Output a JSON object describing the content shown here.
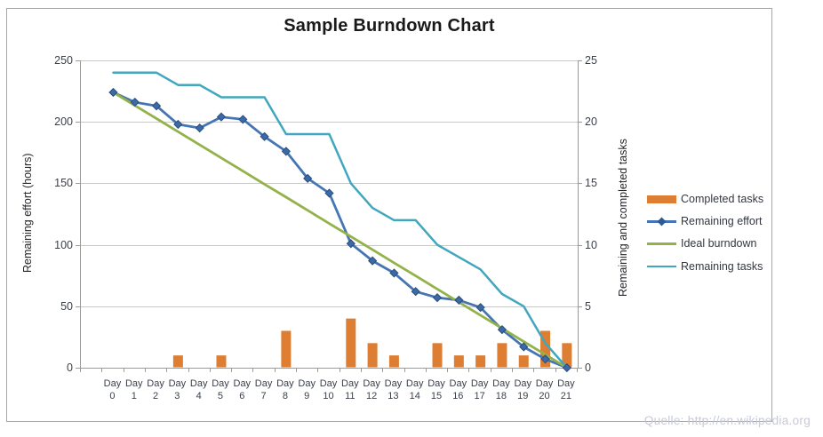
{
  "title": "Sample Burndown Chart",
  "watermark": "Quelle: http://en.wikipedia.org",
  "axes": {
    "left": {
      "title": "Remaining effort (hours)",
      "ticks": [
        "250",
        "200",
        "150",
        "100",
        "50",
        "0"
      ]
    },
    "right": {
      "title": "Remaining and completed tasks",
      "ticks": [
        "25",
        "20",
        "15",
        "10",
        "5",
        "0"
      ]
    },
    "x": {
      "prefix": "Day",
      "days": [
        "0",
        "1",
        "2",
        "3",
        "4",
        "5",
        "6",
        "7",
        "8",
        "9",
        "10",
        "11",
        "12",
        "13",
        "14",
        "15",
        "16",
        "17",
        "18",
        "19",
        "20",
        "21"
      ]
    }
  },
  "legend": [
    {
      "label": "Completed tasks",
      "swatch": "bar",
      "color": "#dd7e32"
    },
    {
      "label": "Remaining effort",
      "swatch": "line-marker",
      "color": "#4575b4",
      "marker_color": "#2f5b94"
    },
    {
      "label": "Ideal burndown",
      "swatch": "line",
      "color": "#94b24a"
    },
    {
      "label": "Remaining tasks",
      "swatch": "line",
      "color": "#41a6be"
    }
  ],
  "colors": {
    "bar": "#dd7e32",
    "remaining_effort": "#4575b4",
    "marker": "#2f5b94",
    "ideal": "#94b24a",
    "remaining_tasks": "#41a6be",
    "gridline": "#c9c9c9",
    "axis": "#9b9b9b"
  },
  "chart_data": {
    "type": "combo",
    "title": "Sample Burndown Chart",
    "x_categories": [
      "Day 0",
      "Day 1",
      "Day 2",
      "Day 3",
      "Day 4",
      "Day 5",
      "Day 6",
      "Day 7",
      "Day 8",
      "Day 9",
      "Day 10",
      "Day 11",
      "Day 12",
      "Day 13",
      "Day 14",
      "Day 15",
      "Day 16",
      "Day 17",
      "Day 18",
      "Day 19",
      "Day 20",
      "Day 21"
    ],
    "left_axis": {
      "label": "Remaining effort (hours)",
      "ylim": [
        0,
        250
      ],
      "tick_step": 50
    },
    "right_axis": {
      "label": "Remaining and completed tasks",
      "ylim": [
        0,
        25
      ],
      "tick_step": 5
    },
    "grid": true,
    "legend_position": "right",
    "series": [
      {
        "name": "Completed tasks",
        "type": "bar",
        "axis": "right",
        "values": [
          0,
          0,
          0,
          1,
          0,
          1,
          0,
          0,
          3,
          0,
          0,
          4,
          2,
          1,
          0,
          2,
          1,
          1,
          2,
          1,
          3,
          2
        ]
      },
      {
        "name": "Remaining effort",
        "type": "line",
        "axis": "left",
        "marker": "diamond",
        "values": [
          224,
          216,
          213,
          198,
          195,
          204,
          202,
          188,
          176,
          154,
          142,
          101,
          87,
          77,
          62,
          57,
          55,
          49,
          31,
          17,
          7,
          0
        ]
      },
      {
        "name": "Ideal burndown",
        "type": "line",
        "axis": "left",
        "values": [
          224,
          213.3,
          202.7,
          192,
          181.3,
          170.7,
          160,
          149.3,
          138.7,
          128,
          117.3,
          106.7,
          96,
          85.3,
          74.7,
          64,
          53.3,
          42.7,
          32,
          21.3,
          10.7,
          0
        ]
      },
      {
        "name": "Remaining tasks",
        "type": "line",
        "axis": "right",
        "values": [
          24,
          24,
          24,
          23,
          23,
          22,
          22,
          22,
          19,
          19,
          19,
          15,
          13,
          12,
          12,
          10,
          9,
          8,
          6,
          5,
          2,
          0
        ]
      }
    ]
  }
}
